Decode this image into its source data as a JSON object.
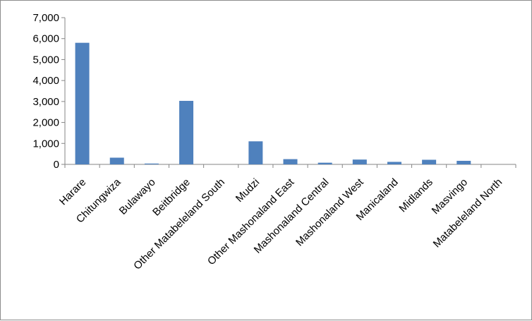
{
  "chart_data": {
    "type": "bar",
    "title": "",
    "xlabel": "",
    "ylabel": "",
    "categories": [
      "Harare",
      "Chitungwiza",
      "Bulawayo",
      "Beitbridge",
      "Other Matabeleland South",
      "Mudzi",
      "Other Mashonaland East",
      "Mashonaland Central",
      "Mashonaland West",
      "Manicaland",
      "Midlands",
      "Masvingo",
      "Matabeleland North"
    ],
    "values": [
      5800,
      320,
      40,
      3030,
      0,
      1100,
      250,
      80,
      230,
      120,
      220,
      170,
      0
    ],
    "ylim": [
      0,
      7000
    ],
    "yticks": [
      0,
      1000,
      2000,
      3000,
      4000,
      5000,
      6000,
      7000
    ],
    "ytick_labels": [
      "0",
      "1,000",
      "2,000",
      "3,000",
      "4,000",
      "5,000",
      "6,000",
      "7,000"
    ],
    "grid": false,
    "legend": "none",
    "bar_color": "#4F81BD",
    "axis_color": "#868686"
  }
}
